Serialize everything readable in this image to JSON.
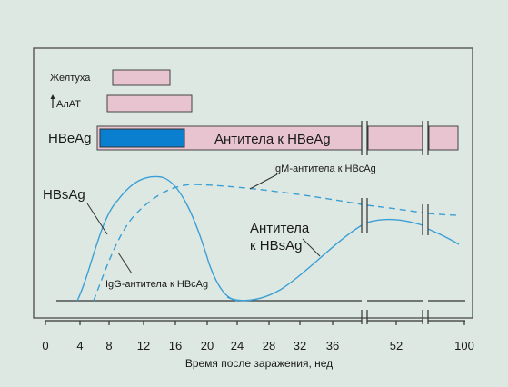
{
  "bars": {
    "jaundice_label": "Желтуха",
    "alt_label": "АлАТ",
    "hbeag_label": "HBeAg",
    "anti_hbe_label": "Антитела к HBeAg"
  },
  "curves": {
    "hbsag_label": "HBsAg",
    "igm_label": "IgM-антитела к HBcAg",
    "igg_label": "IgG-антитела к HBcAg",
    "anti_hbs_line1": "Антитела",
    "anti_hbs_line2": "к HBsAg"
  },
  "axis": {
    "xlabel": "Время после заражения, нед",
    "ticks": [
      "0",
      "4",
      "8",
      "12",
      "16",
      "20",
      "24",
      "28",
      "32",
      "36",
      "52",
      "100"
    ]
  },
  "colors": {
    "background": "#dde8e3",
    "bar_pink": "#e8c4d0",
    "bar_blue": "#0a7fd0",
    "curve_blue": "#3b9fd4",
    "frame": "#555555"
  }
}
